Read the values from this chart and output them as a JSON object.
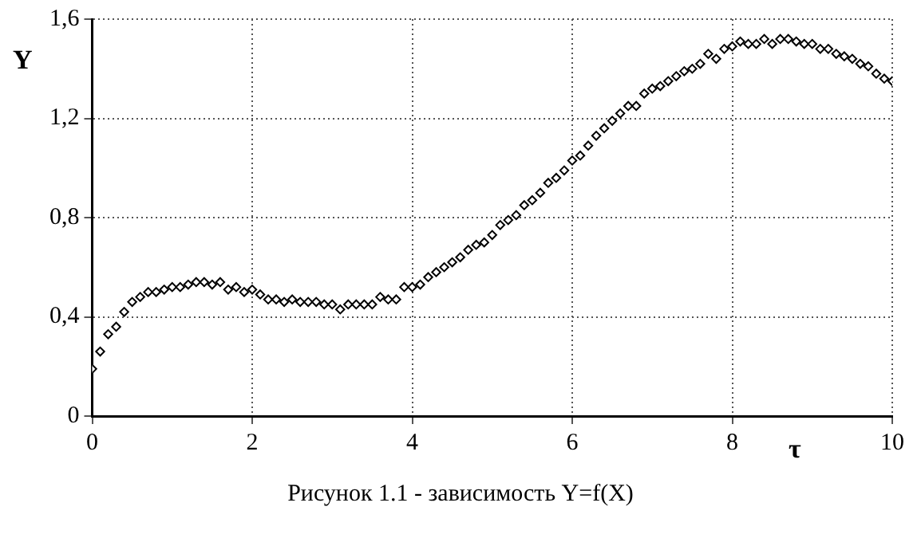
{
  "chart_data": {
    "type": "scatter",
    "xlabel": "τ",
    "ylabel": "Y",
    "annotations": [
      "Рисунок 1.1 - зависимость Y=f(X)"
    ],
    "x": [
      0,
      0.1,
      0.2,
      0.3,
      0.4,
      0.5,
      0.6,
      0.7,
      0.8,
      0.9,
      1.0,
      1.1,
      1.2,
      1.3,
      1.4,
      1.5,
      1.6,
      1.7,
      1.8,
      1.9,
      2.0,
      2.1,
      2.2,
      2.3,
      2.4,
      2.5,
      2.6,
      2.7,
      2.8,
      2.9,
      3.0,
      3.1,
      3.2,
      3.3,
      3.4,
      3.5,
      3.6,
      3.7,
      3.8,
      3.9,
      4.0,
      4.1,
      4.2,
      4.3,
      4.4,
      4.5,
      4.6,
      4.7,
      4.8,
      4.9,
      5.0,
      5.1,
      5.2,
      5.3,
      5.4,
      5.5,
      5.6,
      5.7,
      5.8,
      5.9,
      6.0,
      6.1,
      6.2,
      6.3,
      6.4,
      6.5,
      6.6,
      6.7,
      6.8,
      6.9,
      7.0,
      7.1,
      7.2,
      7.3,
      7.4,
      7.5,
      7.6,
      7.7,
      7.8,
      7.9,
      8.0,
      8.1,
      8.2,
      8.3,
      8.4,
      8.5,
      8.6,
      8.7,
      8.8,
      8.9,
      9.0,
      9.1,
      9.2,
      9.3,
      9.4,
      9.5,
      9.6,
      9.7,
      9.8,
      9.9,
      10.0
    ],
    "series": [
      {
        "color": "#000000",
        "values": [
          0.19,
          0.26,
          0.33,
          0.36,
          0.42,
          0.46,
          0.48,
          0.5,
          0.5,
          0.51,
          0.52,
          0.52,
          0.53,
          0.54,
          0.54,
          0.53,
          0.54,
          0.51,
          0.52,
          0.5,
          0.51,
          0.49,
          0.47,
          0.47,
          0.46,
          0.47,
          0.46,
          0.46,
          0.46,
          0.45,
          0.45,
          0.43,
          0.45,
          0.45,
          0.45,
          0.45,
          0.48,
          0.47,
          0.47,
          0.52,
          0.52,
          0.53,
          0.56,
          0.58,
          0.6,
          0.62,
          0.64,
          0.67,
          0.69,
          0.7,
          0.73,
          0.77,
          0.79,
          0.81,
          0.85,
          0.87,
          0.9,
          0.94,
          0.96,
          0.99,
          1.03,
          1.05,
          1.09,
          1.13,
          1.16,
          1.19,
          1.22,
          1.25,
          1.25,
          1.3,
          1.32,
          1.33,
          1.35,
          1.37,
          1.39,
          1.4,
          1.42,
          1.46,
          1.44,
          1.48,
          1.49,
          1.51,
          1.5,
          1.5,
          1.52,
          1.5,
          1.52,
          1.52,
          1.51,
          1.5,
          1.5,
          1.48,
          1.48,
          1.46,
          1.45,
          1.44,
          1.42,
          1.41,
          1.38,
          1.36,
          1.35
        ]
      }
    ],
    "xlim": [
      0,
      10
    ],
    "xticks": [
      0,
      2,
      4,
      6,
      8,
      10
    ],
    "ylim": [
      0,
      1.6
    ],
    "yticks": [
      {
        "value": 0,
        "label": "0"
      },
      {
        "value": 0.4,
        "label": "0,4"
      },
      {
        "value": 0.8,
        "label": "0,8"
      },
      {
        "value": 1.2,
        "label": "1,2"
      },
      {
        "value": 1.6,
        "label": "1,6"
      }
    ],
    "grid": true,
    "legend": false,
    "marker": "diamond"
  }
}
